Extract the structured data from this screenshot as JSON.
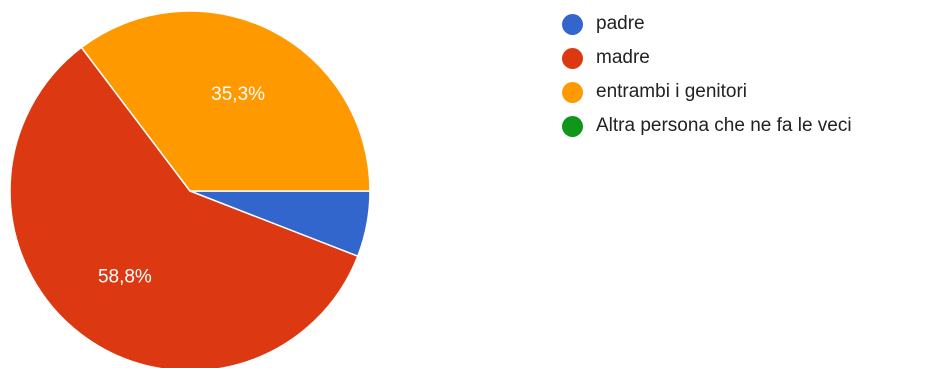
{
  "chart_data": {
    "type": "pie",
    "categories": [
      "padre",
      "madre",
      "entrambi i genitori",
      "Altra persona che ne fa le veci"
    ],
    "values": [
      5.9,
      58.8,
      35.3,
      0
    ],
    "data_labels": [
      "",
      "58,8%",
      "35,3%",
      ""
    ],
    "colors": [
      "#3366cc",
      "#dc3912",
      "#ff9900",
      "#109618"
    ],
    "start": "3 o'clock, clockwise",
    "legend_position": "right"
  }
}
